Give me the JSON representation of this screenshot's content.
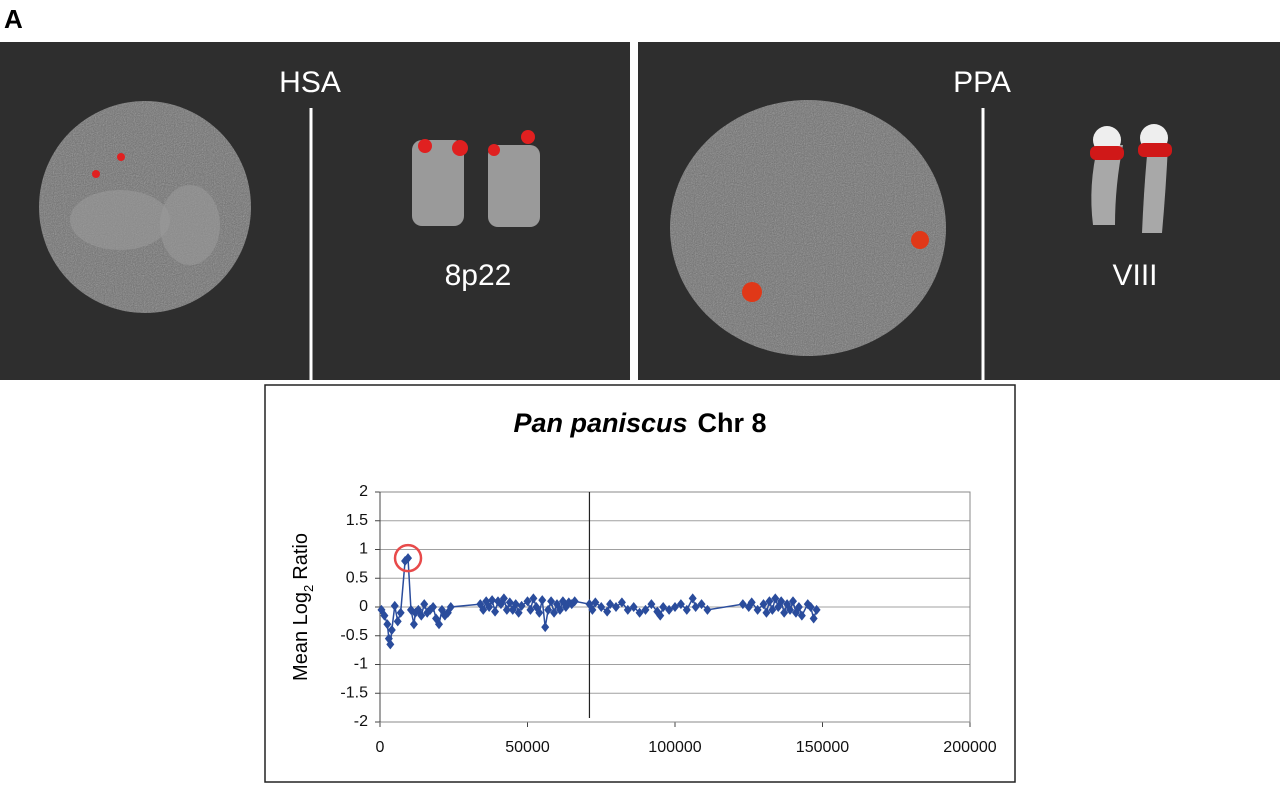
{
  "figure": {
    "panel_label": "A",
    "left": {
      "species": "HSA",
      "band": "8p22"
    },
    "right": {
      "species": "PPA",
      "band": "VIII"
    }
  },
  "chart_data": {
    "type": "line",
    "title_parts": [
      "Pan paniscus",
      "Chr 8"
    ],
    "ylabel_parts": [
      "Mean Log",
      "2",
      "Ratio"
    ],
    "color": "#2a4c9c",
    "highlight_index": 10,
    "highlight_color": "#e84a4a",
    "vline_x": 71000,
    "xlim": [
      0,
      200000
    ],
    "xticks": [
      0,
      50000,
      100000,
      150000,
      200000
    ],
    "ylim": [
      -2,
      2
    ],
    "yticks": [
      -2,
      -1.5,
      -1,
      -0.5,
      0,
      0.5,
      1,
      1.5,
      2
    ],
    "grid": true,
    "x": [
      500,
      1500,
      2500,
      3000,
      3500,
      4000,
      5000,
      6000,
      7000,
      8500,
      9500,
      10500,
      11500,
      12000,
      13000,
      14000,
      15000,
      16000,
      17000,
      18000,
      19000,
      20000,
      21000,
      22000,
      23000,
      24000,
      34000,
      35000,
      36000,
      37000,
      38000,
      39000,
      40000,
      41000,
      42000,
      43000,
      44000,
      45000,
      46000,
      47000,
      48000,
      50000,
      51000,
      52000,
      53000,
      54000,
      55000,
      56000,
      57000,
      58000,
      59000,
      60000,
      61000,
      62000,
      63000,
      64000,
      65000,
      66000,
      71000,
      72000,
      73000,
      75000,
      77000,
      78000,
      80000,
      82000,
      84000,
      86000,
      88000,
      90000,
      92000,
      94000,
      95000,
      96000,
      98000,
      100000,
      102000,
      104000,
      106000,
      107000,
      109000,
      111000,
      123000,
      125000,
      126000,
      128000,
      130000,
      131000,
      132000,
      133000,
      134000,
      135000,
      136000,
      137000,
      138000,
      139000,
      140000,
      141000,
      142000,
      143000,
      145000,
      146000,
      147000,
      148000
    ],
    "values": [
      -0.05,
      -0.15,
      -0.3,
      -0.55,
      -0.65,
      -0.4,
      0.02,
      -0.25,
      -0.1,
      0.8,
      0.85,
      -0.05,
      -0.3,
      -0.1,
      -0.05,
      -0.15,
      0.05,
      -0.1,
      -0.05,
      0,
      -0.2,
      -0.3,
      -0.05,
      -0.15,
      -0.1,
      0,
      0.05,
      -0.05,
      0.1,
      0,
      0.12,
      -0.08,
      0.1,
      0.05,
      0.15,
      -0.05,
      0.08,
      -0.05,
      0.05,
      -0.1,
      0.02,
      0.1,
      -0.05,
      0.15,
      0,
      -0.1,
      0.12,
      -0.35,
      -0.05,
      0.1,
      -0.1,
      0.05,
      -0.05,
      0.1,
      0,
      0.08,
      0.05,
      0.1,
      0.05,
      -0.05,
      0.08,
      0,
      -0.08,
      0.05,
      0,
      0.08,
      -0.05,
      0,
      -0.1,
      -0.05,
      0.05,
      -0.08,
      -0.15,
      0,
      -0.05,
      0,
      0.05,
      -0.05,
      0.15,
      0,
      0.05,
      -0.05,
      0.05,
      0,
      0.08,
      -0.05,
      0.05,
      -0.1,
      0.1,
      -0.05,
      0.15,
      0,
      0.1,
      -0.1,
      0.05,
      -0.05,
      0.1,
      -0.1,
      0,
      -0.15,
      0.05,
      0,
      -0.2,
      -0.05
    ]
  }
}
